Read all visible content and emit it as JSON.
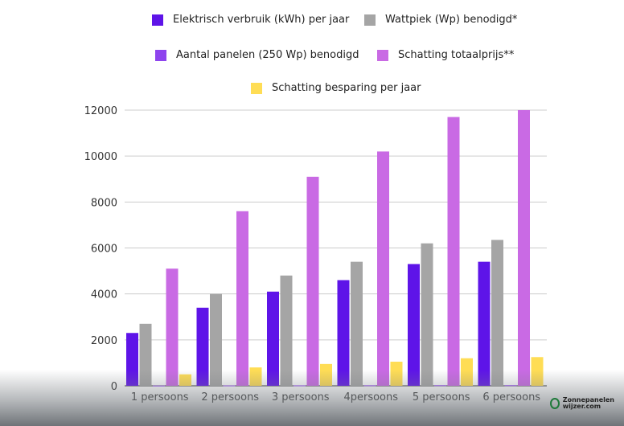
{
  "chart_data": {
    "type": "bar",
    "title": "",
    "xlabel": "",
    "ylabel": "",
    "ylim": [
      0,
      12000
    ],
    "yticks": [
      "0",
      "2000",
      "4000",
      "6000",
      "8000",
      "10000",
      "12000"
    ],
    "grid": true,
    "legend_placement": "top",
    "categories": [
      "1 persoons",
      "2 persoons",
      "3 persoons",
      "4persoons",
      "5 persoons",
      "6 persoons"
    ],
    "series": [
      {
        "name": "Elektrisch verbruik (kWh) per jaar",
        "color": "#5e14e8",
        "values": [
          2300,
          3400,
          4100,
          4600,
          5300,
          5400
        ]
      },
      {
        "name": "Wattpiek (Wp) benodigd*",
        "color": "#a5a5a5",
        "values": [
          2700,
          4000,
          4800,
          5400,
          6200,
          6350
        ]
      },
      {
        "name": "Aantal panelen (250 Wp) benodigd",
        "color": "#8e44ee",
        "values": [
          11,
          16,
          19,
          22,
          25,
          26
        ]
      },
      {
        "name": "Schatting totaalprijs**",
        "color": "#c96ae4",
        "values": [
          5100,
          7600,
          9100,
          10200,
          11700,
          12000
        ]
      },
      {
        "name": "Schatting besparing per jaar",
        "color": "#ffdd55",
        "values": [
          500,
          800,
          950,
          1050,
          1200,
          1250
        ]
      }
    ]
  },
  "logo": {
    "line1": "Zonnepanelen",
    "line2": "wijzer.com"
  }
}
